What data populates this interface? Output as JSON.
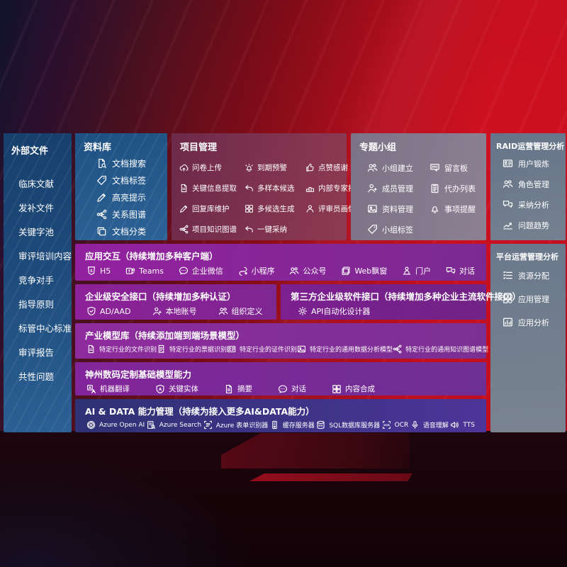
{
  "palette": {
    "bg_red": "#c00f1f",
    "panel_blue": "#1d4a7a",
    "panel_maroon": "#7c3050",
    "panel_gray_mauve": "#857a8e",
    "panel_gray_blue": "#6e7b8c",
    "panel_purple": "#8a2498",
    "panel_indigo": "#3b3383",
    "text": "#ffffff"
  },
  "sidebar": {
    "title": "外部文件",
    "items": [
      {
        "label": "临床文献"
      },
      {
        "label": "发补文件"
      },
      {
        "label": "关键字池"
      },
      {
        "label": "审评培训内容"
      },
      {
        "label": "竞争对手"
      },
      {
        "label": "指导原则"
      },
      {
        "label": "标管中心标准"
      },
      {
        "label": "审评报告"
      },
      {
        "label": "共性问题"
      }
    ]
  },
  "boxes": {
    "ziliaoku": {
      "title": "资料库",
      "items": [
        {
          "icon": "doc-search-icon",
          "label": "文档搜索"
        },
        {
          "icon": "doc-tag-icon",
          "label": "文档标签"
        },
        {
          "icon": "highlight-icon",
          "label": "高亮提示"
        },
        {
          "icon": "relation-graph-icon",
          "label": "关系图谱"
        },
        {
          "icon": "doc-category-icon",
          "label": "文档分类"
        }
      ]
    },
    "xiangmu": {
      "title": "项目管理",
      "items": [
        {
          "icon": "questionnaire-upload-icon",
          "label": "问卷上传"
        },
        {
          "icon": "due-warning-icon",
          "label": "到期预警"
        },
        {
          "icon": "thumbs-up-icon",
          "label": "点赞感谢"
        },
        {
          "icon": "key-info-extract-icon",
          "label": "关键信息提取"
        },
        {
          "icon": "multi-sample-icon",
          "label": "多样本候选"
        },
        {
          "icon": "expert-ranking-icon",
          "label": "内部专家排名"
        },
        {
          "icon": "reply-library-icon",
          "label": "回复库维护"
        },
        {
          "icon": "multi-candidate-icon",
          "label": "多候选生成"
        },
        {
          "icon": "reviewer-portrait-icon",
          "label": "评审员画像"
        },
        {
          "icon": "project-knowledge-graph-icon",
          "label": "项目知识图谱"
        },
        {
          "icon": "one-click-adopt-icon",
          "label": "一键采纳"
        }
      ]
    },
    "zhuanti": {
      "title": "专题小组",
      "items": [
        {
          "icon": "group-create-icon",
          "label": "小组建立"
        },
        {
          "icon": "bbs-icon",
          "label": "留言板"
        },
        {
          "icon": "member-manage-icon",
          "label": "成员管理"
        },
        {
          "icon": "todo-list-icon",
          "label": "代办列表"
        },
        {
          "icon": "material-manage-icon",
          "label": "资料管理"
        },
        {
          "icon": "reminder-icon",
          "label": "事项提醒"
        },
        {
          "icon": "group-tag-icon",
          "label": "小组标签"
        }
      ]
    },
    "raid": {
      "title": "RAID运营管理分析",
      "items": [
        {
          "icon": "user-training-icon",
          "label": "用户锻炼"
        },
        {
          "icon": "role-manage-icon",
          "label": "角色管理"
        },
        {
          "icon": "adoption-analysis-icon",
          "label": "采纳分析"
        },
        {
          "icon": "issue-trend-icon",
          "label": "问题趋势"
        }
      ]
    },
    "pingtai": {
      "title": "平台运营管理分析",
      "items": [
        {
          "icon": "resource-allocation-icon",
          "label": "资源分配"
        },
        {
          "icon": "app-manage-icon",
          "label": "应用管理"
        },
        {
          "icon": "app-analysis-icon",
          "label": "应用分析"
        }
      ]
    },
    "yingyong": {
      "title": "应用交互（持续增加多种客户端）",
      "items": [
        {
          "icon": "h5-icon",
          "label": "H5"
        },
        {
          "icon": "teams-icon",
          "label": "Teams"
        },
        {
          "icon": "wechat-work-icon",
          "label": "企业微信"
        },
        {
          "icon": "miniprogram-icon",
          "label": "小程序"
        },
        {
          "icon": "official-account-icon",
          "label": "公众号"
        },
        {
          "icon": "web-popup-icon",
          "label": "Web飘窗"
        },
        {
          "icon": "portal-icon",
          "label": "门户"
        },
        {
          "icon": "dialog-icon",
          "label": "对话"
        }
      ]
    },
    "anquan": {
      "title": "企业级安全接口（持续增加多种认证）",
      "items": [
        {
          "icon": "ad-aad-icon",
          "label": "AD/AAD"
        },
        {
          "icon": "local-account-icon",
          "label": "本地账号"
        },
        {
          "icon": "org-definition-icon",
          "label": "组织定义"
        }
      ]
    },
    "disanfang": {
      "title": "第三方企业级软件接口（持续增加多种企业主流软件接口）",
      "items": [
        {
          "icon": "api-designer-icon",
          "label": "API自动化设计器"
        }
      ]
    },
    "chanye": {
      "title": "产业模型库（持续添加端到端场景模型）",
      "items": [
        {
          "icon": "file-recognition-icon",
          "label": "特定行业的文件识别"
        },
        {
          "icon": "receipt-recognition-icon",
          "label": "特定行业的票据识别"
        },
        {
          "icon": "certificate-recognition-icon",
          "label": "特定行业的证件识别"
        },
        {
          "icon": "data-analysis-model-icon",
          "label": "特定行业的通用数据分析模型"
        },
        {
          "icon": "knowledge-graph-model-icon",
          "label": "特定行业的通用知识图谱模型"
        }
      ]
    },
    "shenzhou": {
      "title": "神州数码定制基础模型能力",
      "items": [
        {
          "icon": "machine-translation-icon",
          "label": "机器翻译"
        },
        {
          "icon": "key-entity-icon",
          "label": "关键实体"
        },
        {
          "icon": "summary-icon",
          "label": "摘要"
        },
        {
          "icon": "chat-icon",
          "label": "对话"
        },
        {
          "icon": "content-compose-icon",
          "label": "内容合成"
        }
      ]
    },
    "aidata": {
      "title": "AI & DATA 能力管理（持续为接入更多AI&DATA能力）",
      "items": [
        {
          "icon": "azure-openai-icon",
          "label": "Azure Open AI"
        },
        {
          "icon": "azure-search-icon",
          "label": "Azure Search"
        },
        {
          "icon": "form-recognizer-icon",
          "label": "Azure 表单识别器"
        },
        {
          "icon": "cache-server-icon",
          "label": "缓存服务器"
        },
        {
          "icon": "sql-server-icon",
          "label": "SQL数据库服务器"
        },
        {
          "icon": "ocr-icon",
          "label": "OCR"
        },
        {
          "icon": "speech-icon",
          "label": "语音理解"
        },
        {
          "icon": "tts-icon",
          "label": "TTS"
        }
      ]
    }
  }
}
